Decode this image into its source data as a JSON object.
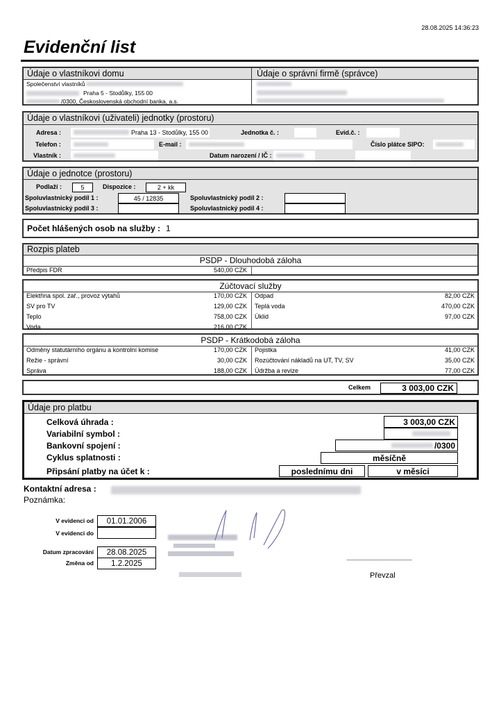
{
  "timestamp": "28.08.2025 14:36:23",
  "title": "Evidenční list",
  "owner_house": {
    "header": "Údaje o vlastníkovi domu",
    "line1": "Společenství vlastníků",
    "line2": "Praha 5 - Stodůlky,  155 00",
    "line3": "/0300, Československá obchodní banka, a.s."
  },
  "manager": {
    "header": "Údaje o správní firmě (správce)"
  },
  "unit_owner": {
    "header": "Údaje o vlastníkovi (uživateli)  jednotky (prostoru)",
    "address_label": "Adresa :",
    "address_value": "Praha 13 - Stodůlky, 155 00",
    "unit_no_label": "Jednotka č. :",
    "evid_label": "Evid.č. :",
    "phone_label": "Telefon :",
    "email_label": "E-mail :",
    "sipo_label": "Číslo plátce SIPO:",
    "owner_label": "Vlastník :",
    "dob_label": "Datum narození / IČ :"
  },
  "unit": {
    "header": "Údaje o jednotce (prostoru)",
    "floor_label": "Podlaží :",
    "floor": "5",
    "layout_label": "Dispozice :",
    "layout": "2 + kk",
    "share1_label": "Spoluvlastnický podíl 1 :",
    "share1": "45 / 12835",
    "share2_label": "Spoluvlastnický podíl 2 :",
    "share3_label": "Spoluvlastnický podíl 3 :",
    "share4_label": "Spoluvlastnický podíl 4 :"
  },
  "persons": {
    "label": "Počet hlášených osob na služby  :",
    "value": "1"
  },
  "payments": {
    "header": "Rozpis plateb",
    "long_term": {
      "title": "PSDP - Dlouhodobá záloha",
      "left": [
        {
          "label": "Předpis FDR",
          "value": "540,00 CZK"
        }
      ]
    },
    "services": {
      "title": "Zúčtovací služby",
      "left": [
        {
          "label": "Elektřina spol. zař., provoz výtahů",
          "value": "170,00 CZK"
        },
        {
          "label": "SV pro TV",
          "value": "129,00 CZK"
        },
        {
          "label": "Teplo",
          "value": "758,00 CZK"
        },
        {
          "label": "Voda",
          "value": "216,00 CZK"
        }
      ],
      "right": [
        {
          "label": "Odpad",
          "value": "82,00 CZK"
        },
        {
          "label": "Teplá voda",
          "value": "470,00 CZK"
        },
        {
          "label": "Úklid",
          "value": "97,00 CZK"
        }
      ]
    },
    "short_term": {
      "title": "PSDP - Krátkodobá záloha",
      "left": [
        {
          "label": "Odměny statutárního orgánu a kontrolní komise",
          "value": "170,00 CZK"
        },
        {
          "label": "Režie - správní",
          "value": "30,00 CZK"
        },
        {
          "label": "Správa",
          "value": "188,00 CZK"
        }
      ],
      "right": [
        {
          "label": "Pojistka",
          "value": "41,00 CZK"
        },
        {
          "label": "Rozúčtování nákladů na UT, TV, SV",
          "value": "35,00 CZK"
        },
        {
          "label": "Údržba a revize",
          "value": "77,00 CZK"
        }
      ]
    },
    "total_label": "Celkem",
    "total": "3 003,00 CZK"
  },
  "pay_info": {
    "header": "Údaje pro platbu",
    "total_label": "Celková úhrada :",
    "total": "3 003,00 CZK",
    "vs_label": "Variabilní symbol :",
    "bank_label": "Bankovní spojení :",
    "bank_suffix": "/0300",
    "cycle_label": "Cyklus splatnosti :",
    "cycle": "měsíčně",
    "credit_label": "Připsání platby na účet k :",
    "credit_day": "poslednímu dni",
    "credit_period": "v měsíci"
  },
  "contact_label": "Kontaktní adresa :",
  "note_label": "Poznámka:",
  "records": {
    "from_label": "V evidenci od",
    "from": "01.01.2006",
    "to_label": "V evidenci do",
    "processed_label": "Datum zpracování",
    "processed": "28.08.2025",
    "change_label": "Změna od",
    "change": "1.2.2025"
  },
  "received_label": "Převzal"
}
